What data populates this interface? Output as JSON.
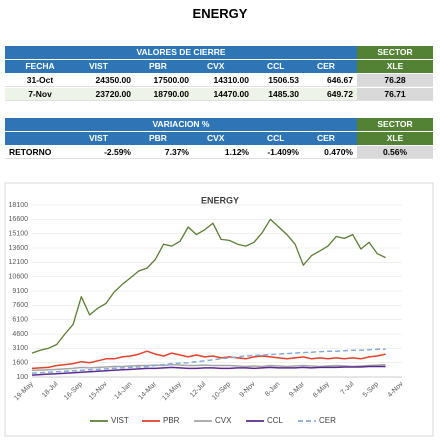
{
  "header": {
    "title": "ENERGY"
  },
  "tables": [
    {
      "group": "VALORES DE CIERRE",
      "sector": "SECTOR",
      "columns": [
        "FECHA",
        "VIST",
        "PBR",
        "CVX",
        "CCL",
        "CER",
        "XLE"
      ],
      "rows": [
        [
          "31-Oct",
          "24350.00",
          "17500.00",
          "14310.00",
          "1506.53",
          "646.67",
          "76.28"
        ],
        [
          "7-Nov",
          "23720.00",
          "18790.00",
          "14470.00",
          "1485.30",
          "649.72",
          "76.71"
        ]
      ]
    },
    {
      "group": "VARIACION %",
      "sector": "SECTOR",
      "columns": [
        null,
        "VIST",
        "PBR",
        "CVX",
        "CCL",
        "CER",
        "XLE"
      ],
      "rows": [
        [
          "RETORNO",
          "-2.59%",
          "7.37%",
          "1.12%",
          "-1.409%",
          "0.470%",
          "0.56%"
        ]
      ]
    }
  ],
  "chart_data": {
    "type": "line",
    "title": "ENERGY",
    "categories": [
      "19-May",
      null,
      null,
      "18-Jul",
      null,
      null,
      "16-Sep",
      null,
      null,
      "15-Nov",
      null,
      null,
      "14-Jan",
      null,
      null,
      "14-Mar",
      null,
      null,
      "13-May",
      null,
      null,
      "12-Jul",
      null,
      null,
      "10-Sep",
      null,
      null,
      "9-Nov",
      null,
      null,
      "8-Jan",
      null,
      null,
      "9-Mar",
      null,
      null,
      "8-May",
      null,
      null,
      "7-Jul",
      null,
      null,
      "5-Sep",
      null,
      null,
      "4-Nov"
    ],
    "ylim": [
      100,
      18100
    ],
    "yticks": [
      100,
      1600,
      3100,
      4600,
      6100,
      7600,
      9100,
      10600,
      12100,
      13600,
      15100,
      16600,
      18100
    ],
    "legend": "bottom",
    "series": [
      {
        "name": "VIST",
        "color": "#5b7d32",
        "values": [
          2600,
          2900,
          3100,
          3500,
          4600,
          5600,
          8500,
          6600,
          7300,
          7800,
          9000,
          9800,
          10500,
          11200,
          11500,
          12400,
          14000,
          13800,
          14300,
          15800,
          15000,
          15500,
          16200,
          14500,
          14400,
          14000,
          13800,
          14200,
          15200,
          16600,
          15800,
          15000,
          14000,
          11800,
          12800,
          13300,
          13800,
          14800,
          14600,
          15000,
          13500,
          14200,
          13000,
          12600,
          null,
          null
        ]
      },
      {
        "name": "PBR",
        "color": "#e3412c",
        "values": [
          1000,
          1050,
          1100,
          1300,
          1400,
          1500,
          1700,
          1600,
          1800,
          2000,
          2000,
          2200,
          2300,
          2500,
          2800,
          2500,
          2300,
          2600,
          2400,
          2200,
          2400,
          2200,
          2300,
          2100,
          2200,
          2100,
          2000,
          2200,
          2300,
          2200,
          2100,
          2000,
          2100,
          2200,
          2000,
          2100,
          2000,
          2100,
          2000,
          2100,
          2000,
          2200,
          2300,
          2500,
          null,
          null
        ]
      },
      {
        "name": "CVX",
        "color": "#a5a5a5",
        "values": [
          800,
          820,
          850,
          900,
          950,
          1000,
          1100,
          1050,
          1100,
          1150,
          1200,
          1200,
          1250,
          1300,
          1300,
          1350,
          1300,
          1400,
          1350,
          1300,
          1300,
          1350,
          1300,
          1300,
          1300,
          1250,
          1200,
          1250,
          1200,
          1300,
          1250,
          1200,
          1250,
          1300,
          1250,
          1200,
          1250,
          1300,
          1250,
          1200,
          1250,
          1300,
          1350,
          1400,
          null,
          null
        ]
      },
      {
        "name": "CCL",
        "color": "#5b2c8e",
        "values": [
          300,
          350,
          400,
          450,
          500,
          550,
          600,
          650,
          700,
          750,
          800,
          850,
          900,
          950,
          1000,
          1000,
          1050,
          1100,
          1050,
          1000,
          1000,
          1050,
          1050,
          1000,
          1000,
          1050,
          1050,
          1000,
          1050,
          1100,
          1050,
          1050,
          1050,
          1100,
          1050,
          1100,
          1100,
          1100,
          1150,
          1150,
          1150,
          1200,
          1200,
          1200,
          null,
          null
        ]
      },
      {
        "name": "CER",
        "color": "#86abd9",
        "dashed": true,
        "values": [
          500,
          550,
          600,
          650,
          700,
          750,
          800,
          850,
          900,
          950,
          1000,
          1050,
          1100,
          1150,
          1200,
          1300,
          1400,
          1500,
          1550,
          1600,
          1700,
          1800,
          1900,
          2000,
          2100,
          2200,
          2300,
          2350,
          2400,
          2450,
          2500,
          2550,
          2600,
          2650,
          2700,
          2750,
          2800,
          2800,
          2850,
          2900,
          2900,
          2950,
          3000,
          3000,
          null,
          null
        ]
      }
    ]
  }
}
